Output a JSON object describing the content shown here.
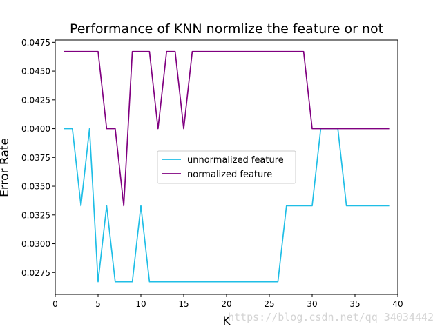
{
  "chart_data": {
    "type": "line",
    "title": "Performance of KNN normlize the feature or not",
    "xlabel": "K",
    "ylabel": "Error Rate",
    "xlim": [
      0,
      40
    ],
    "ylim": [
      0.0256,
      0.0477
    ],
    "xticks": [
      "0",
      "5",
      "10",
      "15",
      "20",
      "25",
      "30",
      "35",
      "40"
    ],
    "yticks": [
      "0.0275",
      "0.0300",
      "0.0325",
      "0.0350",
      "0.0375",
      "0.0400",
      "0.0425",
      "0.0450",
      "0.0475"
    ],
    "x": [
      1,
      2,
      3,
      4,
      5,
      6,
      7,
      8,
      9,
      10,
      11,
      12,
      13,
      14,
      15,
      16,
      17,
      18,
      19,
      20,
      21,
      22,
      23,
      24,
      25,
      26,
      27,
      28,
      29,
      30,
      31,
      32,
      33,
      34,
      35,
      36,
      37,
      38,
      39
    ],
    "series": [
      {
        "name": "unnormalized feature",
        "color": "#1fbee6",
        "values": [
          0.04,
          0.04,
          0.0333,
          0.04,
          0.0267,
          0.0333,
          0.0267,
          0.0267,
          0.0267,
          0.0333,
          0.0267,
          0.0267,
          0.0267,
          0.0267,
          0.0267,
          0.0267,
          0.0267,
          0.0267,
          0.0267,
          0.0267,
          0.0267,
          0.0267,
          0.0267,
          0.0267,
          0.0267,
          0.0267,
          0.0333,
          0.0333,
          0.0333,
          0.0333,
          0.04,
          0.04,
          0.04,
          0.0333,
          0.0333,
          0.0333,
          0.0333,
          0.0333,
          0.0333
        ]
      },
      {
        "name": "normalized feature",
        "color": "#800080",
        "values": [
          0.0467,
          0.0467,
          0.0467,
          0.0467,
          0.0467,
          0.04,
          0.04,
          0.0333,
          0.0467,
          0.0467,
          0.0467,
          0.04,
          0.0467,
          0.0467,
          0.04,
          0.0467,
          0.0467,
          0.0467,
          0.0467,
          0.0467,
          0.0467,
          0.0467,
          0.0467,
          0.0467,
          0.0467,
          0.0467,
          0.0467,
          0.0467,
          0.0467,
          0.04,
          0.04,
          0.04,
          0.04,
          0.04,
          0.04,
          0.04,
          0.04,
          0.04,
          0.04
        ]
      }
    ],
    "legend_position": "center-right",
    "grid": false
  },
  "watermark": "https://blog.csdn.net/qq_34034442"
}
